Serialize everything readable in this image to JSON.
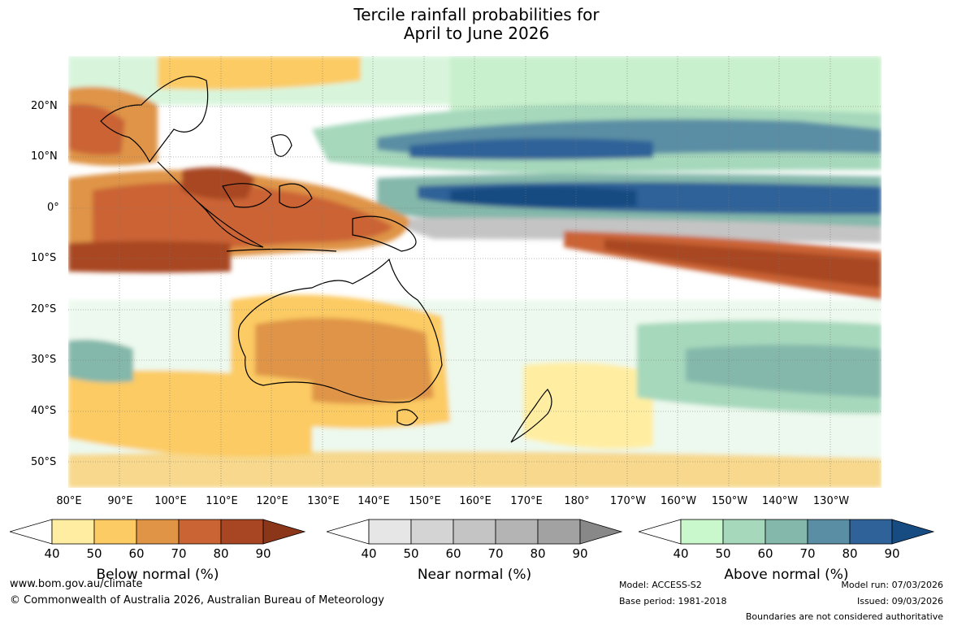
{
  "title": {
    "line1": "Tercile rainfall probabilities for",
    "line2": "April to June 2026"
  },
  "lat_labels": [
    "20°N",
    "10°N",
    "0°",
    "10°S",
    "20°S",
    "30°S",
    "40°S",
    "50°S"
  ],
  "lon_labels": [
    "80°E",
    "90°E",
    "100°E",
    "110°E",
    "120°E",
    "130°E",
    "140°E",
    "150°E",
    "160°E",
    "170°E",
    "180°",
    "170°W",
    "160°W",
    "150°W",
    "140°W",
    "130°W"
  ],
  "colorbars": [
    {
      "name": "below",
      "label": "Below normal (%)",
      "ticks": [
        "40",
        "50",
        "60",
        "70",
        "80",
        "90"
      ],
      "colors": [
        "#ffffff",
        "#ffeea2",
        "#fccb63",
        "#df9446",
        "#cb6434",
        "#a84623",
        "#8c3619"
      ]
    },
    {
      "name": "near",
      "label": "Near normal (%)",
      "ticks": [
        "40",
        "50",
        "60",
        "70",
        "80",
        "90"
      ],
      "colors": [
        "#ffffff",
        "#e6e6e6",
        "#d4d4d4",
        "#c4c4c4",
        "#b4b4b4",
        "#a2a2a2",
        "#888888"
      ]
    },
    {
      "name": "above",
      "label": "Above normal (%)",
      "ticks": [
        "40",
        "50",
        "60",
        "70",
        "80",
        "90"
      ],
      "colors": [
        "#ffffff",
        "#c8f8cc",
        "#a6d8bc",
        "#84b8aa",
        "#5a8ea4",
        "#2e6298",
        "#174c82"
      ]
    }
  ],
  "footer": {
    "website": "www.bom.gov.au/climate",
    "copyright": "© Commonwealth of Australia 2026, Australian Bureau of Meteorology",
    "model": "Model: ACCESS-S2",
    "base_period": "Base period: 1981-2018",
    "model_run": "Model run: 07/03/2026",
    "issued": "Issued: 09/03/2026",
    "disclaimer": "Boundaries are not considered authoritative"
  }
}
